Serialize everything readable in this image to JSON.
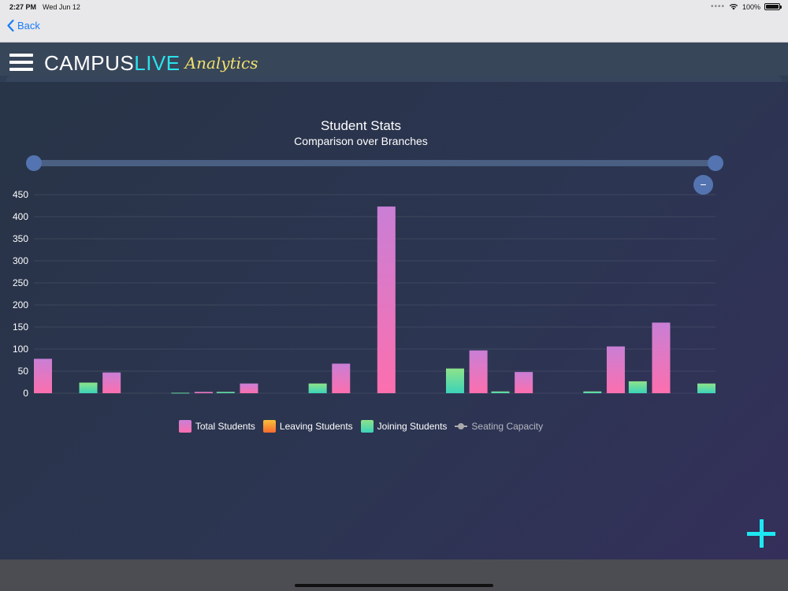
{
  "status_bar": {
    "time": "2:27 PM",
    "date": "Wed Jun 12",
    "battery": "100%",
    "icons": [
      "dots-icon",
      "wifi-icon",
      "battery-icon"
    ]
  },
  "nav": {
    "back_label": "Back",
    "back_icon": "chevron-left-icon"
  },
  "header": {
    "menu_icon": "hamburger-menu-icon",
    "logo_campus": "CAMPUS",
    "logo_live": "LIVE",
    "logo_analytics": "Analytics",
    "colors": {
      "live": "#29e3ec",
      "analytics": "#f1e06a"
    }
  },
  "controls": {
    "zoom_out_label": "−",
    "add_icon": "plus-icon",
    "range_slider": {
      "start": 0,
      "end": 1
    }
  },
  "chart_data": {
    "type": "bar",
    "title": "Student Stats",
    "subtitle": "Comparison over Branches",
    "categories": [
      "",
      "",
      "",
      "",
      ""
    ],
    "ylim": [
      0,
      450
    ],
    "yticks": [
      0,
      50,
      100,
      150,
      200,
      250,
      300,
      350,
      400,
      450
    ],
    "grid": true,
    "legend_position": "bottom",
    "x": [
      0.0,
      0.17,
      0.5,
      0.83,
      1.17,
      1.5,
      1.83,
      2.17,
      2.5,
      2.83,
      3.17,
      3.5,
      3.83,
      4.17,
      4.5,
      4.83
    ],
    "series": [
      {
        "name": "Total Students",
        "color": "#e17bc4",
        "points": [
          [
            0.0,
            78
          ],
          [
            0.5,
            47
          ],
          [
            1.17,
            3
          ],
          [
            1.5,
            22
          ],
          [
            2.17,
            67
          ],
          [
            2.5,
            423
          ],
          [
            3.17,
            97
          ],
          [
            3.5,
            48
          ],
          [
            4.17,
            106
          ],
          [
            4.5,
            160
          ]
        ]
      },
      {
        "name": "Leaving Students",
        "color": "#f5a623",
        "points": []
      },
      {
        "name": "Joining Students",
        "color": "#64d99b",
        "points": [
          [
            0.33,
            24
          ],
          [
            1.0,
            1
          ],
          [
            1.33,
            3
          ],
          [
            2.0,
            22
          ],
          [
            3.0,
            56
          ],
          [
            3.33,
            4
          ],
          [
            4.0,
            4
          ],
          [
            4.33,
            27
          ],
          [
            4.83,
            22
          ]
        ]
      },
      {
        "name": "Seating Capacity",
        "color": "#aaaaaa",
        "type": "line",
        "hidden": true,
        "points": []
      }
    ]
  }
}
